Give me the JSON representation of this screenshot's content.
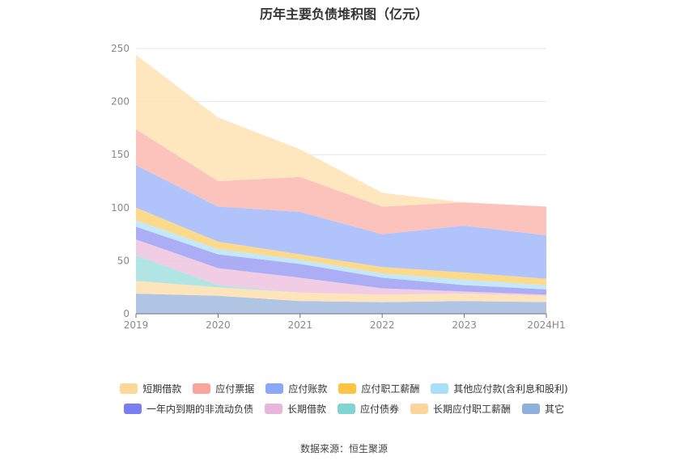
{
  "chart_data": {
    "type": "area",
    "title": "历年主要负债堆积图（亿元）",
    "categories": [
      "2019",
      "2020",
      "2021",
      "2022",
      "2023",
      "2024H1"
    ],
    "ylim": [
      0,
      250
    ],
    "yticks": [
      0,
      50,
      100,
      150,
      200,
      250
    ],
    "stacked": true,
    "grid": true,
    "legend_position": "bottom",
    "series": [
      {
        "name": "其它",
        "color": "#a7bfe0",
        "values": [
          19,
          17,
          12,
          11,
          12,
          11
        ]
      },
      {
        "name": "长期应付职工薪酬",
        "color": "#fde1b3",
        "values": [
          12,
          8,
          8,
          7,
          7,
          6
        ]
      },
      {
        "name": "应付债券",
        "color": "#a9e2e0",
        "values": [
          24,
          2,
          0,
          0,
          0,
          0
        ]
      },
      {
        "name": "长期借款",
        "color": "#eec7e2",
        "values": [
          15,
          16,
          14,
          6,
          2,
          1
        ]
      },
      {
        "name": "一年内到期的非流动负债",
        "color": "#a3a5f4",
        "values": [
          12,
          13,
          13,
          10,
          6,
          5
        ]
      },
      {
        "name": "其他应付款(含利息和股利)",
        "color": "#bde6fb",
        "values": [
          6,
          5,
          4,
          4,
          5,
          4
        ]
      },
      {
        "name": "应付职工薪酬",
        "color": "#fcd67e",
        "values": [
          12,
          7,
          5,
          6,
          7,
          6
        ]
      },
      {
        "name": "应付账款",
        "color": "#a8bdfb",
        "values": [
          40,
          33,
          40,
          31,
          44,
          41
        ]
      },
      {
        "name": "应付票据",
        "color": "#fcbcb6",
        "values": [
          34,
          24,
          33,
          26,
          22,
          27
        ]
      },
      {
        "name": "短期借款",
        "color": "#fee4b8",
        "values": [
          70,
          60,
          26,
          13,
          0,
          0
        ]
      }
    ],
    "legend_rows": [
      [
        {
          "name": "短期借款",
          "color": "#fcd99a"
        },
        {
          "name": "应付票据",
          "color": "#f9a59c"
        },
        {
          "name": "应付账款",
          "color": "#8ba7f8"
        },
        {
          "name": "应付职工薪酬",
          "color": "#fbc543"
        },
        {
          "name": "其他应付款(含利息和股利)",
          "color": "#aadff9"
        }
      ],
      [
        {
          "name": "一年内到期的非流动负债",
          "color": "#7b7ef1"
        },
        {
          "name": "长期借款",
          "color": "#e7b6da"
        },
        {
          "name": "应付债券",
          "color": "#82d4d1"
        },
        {
          "name": "长期应付职工薪酬",
          "color": "#fcd59d"
        },
        {
          "name": "其它",
          "color": "#90aedb"
        }
      ]
    ]
  },
  "source": "数据来源：恒生聚源"
}
